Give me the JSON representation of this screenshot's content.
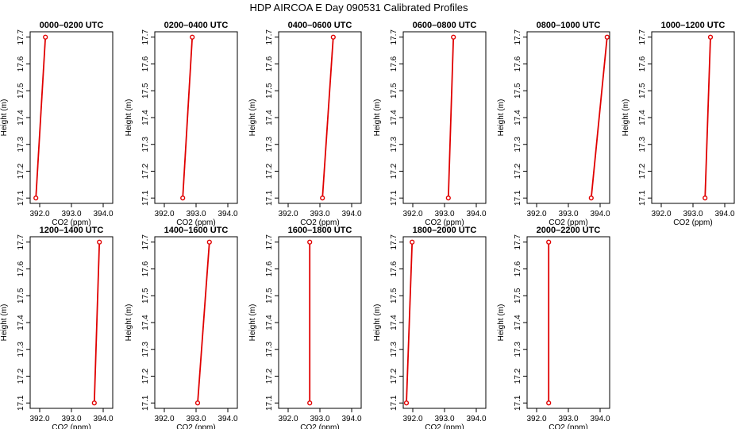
{
  "title": "HDP AIRCOA E  Day 090531  Calibrated Profiles",
  "chart_data": [
    {
      "type": "line",
      "title": "0000–0200 UTC",
      "xlabel": "CO2 (ppm)",
      "ylabel": "Height (m)",
      "xlim": [
        391.7,
        394.3
      ],
      "ylim": [
        17.08,
        17.72
      ],
      "xticks": [
        "392.0",
        "393.0",
        "394.0"
      ],
      "yticks": [
        "17.1",
        "17.2",
        "17.3",
        "17.4",
        "17.5",
        "17.6",
        "17.7"
      ],
      "color": "#e00000",
      "x": [
        391.88,
        392.18
      ],
      "y": [
        17.1,
        17.7
      ]
    },
    {
      "type": "line",
      "title": "0200–0400 UTC",
      "xlabel": "CO2 (ppm)",
      "ylabel": "Height (m)",
      "xlim": [
        391.7,
        394.3
      ],
      "ylim": [
        17.08,
        17.72
      ],
      "xticks": [
        "392.0",
        "393.0",
        "394.0"
      ],
      "yticks": [
        "17.1",
        "17.2",
        "17.3",
        "17.4",
        "17.5",
        "17.6",
        "17.7"
      ],
      "color": "#e00000",
      "x": [
        392.58,
        392.88
      ],
      "y": [
        17.1,
        17.7
      ]
    },
    {
      "type": "line",
      "title": "0400–0600 UTC",
      "xlabel": "CO2 (ppm)",
      "ylabel": "Height (m)",
      "xlim": [
        391.7,
        394.3
      ],
      "ylim": [
        17.08,
        17.72
      ],
      "xticks": [
        "392.0",
        "393.0",
        "394.0"
      ],
      "yticks": [
        "17.1",
        "17.2",
        "17.3",
        "17.4",
        "17.5",
        "17.6",
        "17.7"
      ],
      "color": "#e00000",
      "x": [
        393.08,
        393.42
      ],
      "y": [
        17.1,
        17.7
      ]
    },
    {
      "type": "line",
      "title": "0600–0800 UTC",
      "xlabel": "CO2 (ppm)",
      "ylabel": "Height (m)",
      "xlim": [
        391.7,
        394.3
      ],
      "ylim": [
        17.08,
        17.72
      ],
      "xticks": [
        "392.0",
        "393.0",
        "394.0"
      ],
      "yticks": [
        "17.1",
        "17.2",
        "17.3",
        "17.4",
        "17.5",
        "17.6",
        "17.7"
      ],
      "color": "#e00000",
      "x": [
        393.12,
        393.28
      ],
      "y": [
        17.1,
        17.7
      ]
    },
    {
      "type": "line",
      "title": "0800–1000 UTC",
      "xlabel": "CO2 (ppm)",
      "ylabel": "Height (m)",
      "xlim": [
        391.7,
        394.3
      ],
      "ylim": [
        17.08,
        17.72
      ],
      "xticks": [
        "392.0",
        "393.0",
        "394.0"
      ],
      "yticks": [
        "17.1",
        "17.2",
        "17.3",
        "17.4",
        "17.5",
        "17.6",
        "17.7"
      ],
      "color": "#e00000",
      "x": [
        393.72,
        394.22
      ],
      "y": [
        17.1,
        17.7
      ]
    },
    {
      "type": "line",
      "title": "1000–1200 UTC",
      "xlabel": "CO2 (ppm)",
      "ylabel": "Height (m)",
      "xlim": [
        391.7,
        394.3
      ],
      "ylim": [
        17.08,
        17.72
      ],
      "xticks": [
        "392.0",
        "393.0",
        "394.0"
      ],
      "yticks": [
        "17.1",
        "17.2",
        "17.3",
        "17.4",
        "17.5",
        "17.6",
        "17.7"
      ],
      "color": "#e00000",
      "x": [
        393.38,
        393.55
      ],
      "y": [
        17.1,
        17.7
      ]
    },
    {
      "type": "line",
      "title": "1200–1400 UTC",
      "xlabel": "CO2 (ppm)",
      "ylabel": "Height (m)",
      "xlim": [
        391.7,
        394.3
      ],
      "ylim": [
        17.08,
        17.72
      ],
      "xticks": [
        "392.0",
        "393.0",
        "394.0"
      ],
      "yticks": [
        "17.1",
        "17.2",
        "17.3",
        "17.4",
        "17.5",
        "17.6",
        "17.7"
      ],
      "color": "#e00000",
      "x": [
        393.72,
        393.88
      ],
      "y": [
        17.1,
        17.7
      ]
    },
    {
      "type": "line",
      "title": "1400–1600 UTC",
      "xlabel": "CO2 (ppm)",
      "ylabel": "Height (m)",
      "xlim": [
        391.7,
        394.3
      ],
      "ylim": [
        17.08,
        17.72
      ],
      "xticks": [
        "392.0",
        "393.0",
        "394.0"
      ],
      "yticks": [
        "17.1",
        "17.2",
        "17.3",
        "17.4",
        "17.5",
        "17.6",
        "17.7"
      ],
      "color": "#e00000",
      "x": [
        393.05,
        393.42
      ],
      "y": [
        17.1,
        17.7
      ]
    },
    {
      "type": "line",
      "title": "1600–1800 UTC",
      "xlabel": "CO2 (ppm)",
      "ylabel": "Height (m)",
      "xlim": [
        391.7,
        394.3
      ],
      "ylim": [
        17.08,
        17.72
      ],
      "xticks": [
        "392.0",
        "393.0",
        "394.0"
      ],
      "yticks": [
        "17.1",
        "17.2",
        "17.3",
        "17.4",
        "17.5",
        "17.6",
        "17.7"
      ],
      "color": "#e00000",
      "x": [
        392.68,
        392.68
      ],
      "y": [
        17.1,
        17.7
      ]
    },
    {
      "type": "line",
      "title": "1800–2000 UTC",
      "xlabel": "CO2 (ppm)",
      "ylabel": "Height (m)",
      "xlim": [
        391.7,
        394.3
      ],
      "ylim": [
        17.08,
        17.72
      ],
      "xticks": [
        "392.0",
        "393.0",
        "394.0"
      ],
      "yticks": [
        "17.1",
        "17.2",
        "17.3",
        "17.4",
        "17.5",
        "17.6",
        "17.7"
      ],
      "color": "#e00000",
      "x": [
        391.8,
        391.98
      ],
      "y": [
        17.1,
        17.7
      ]
    },
    {
      "type": "line",
      "title": "2000–2200 UTC",
      "xlabel": "CO2 (ppm)",
      "ylabel": "Height (m)",
      "xlim": [
        391.7,
        394.3
      ],
      "ylim": [
        17.08,
        17.72
      ],
      "xticks": [
        "392.0",
        "393.0",
        "394.0"
      ],
      "yticks": [
        "17.1",
        "17.2",
        "17.3",
        "17.4",
        "17.5",
        "17.6",
        "17.7"
      ],
      "color": "#e00000",
      "x": [
        392.38,
        392.38
      ],
      "y": [
        17.1,
        17.7
      ]
    }
  ]
}
